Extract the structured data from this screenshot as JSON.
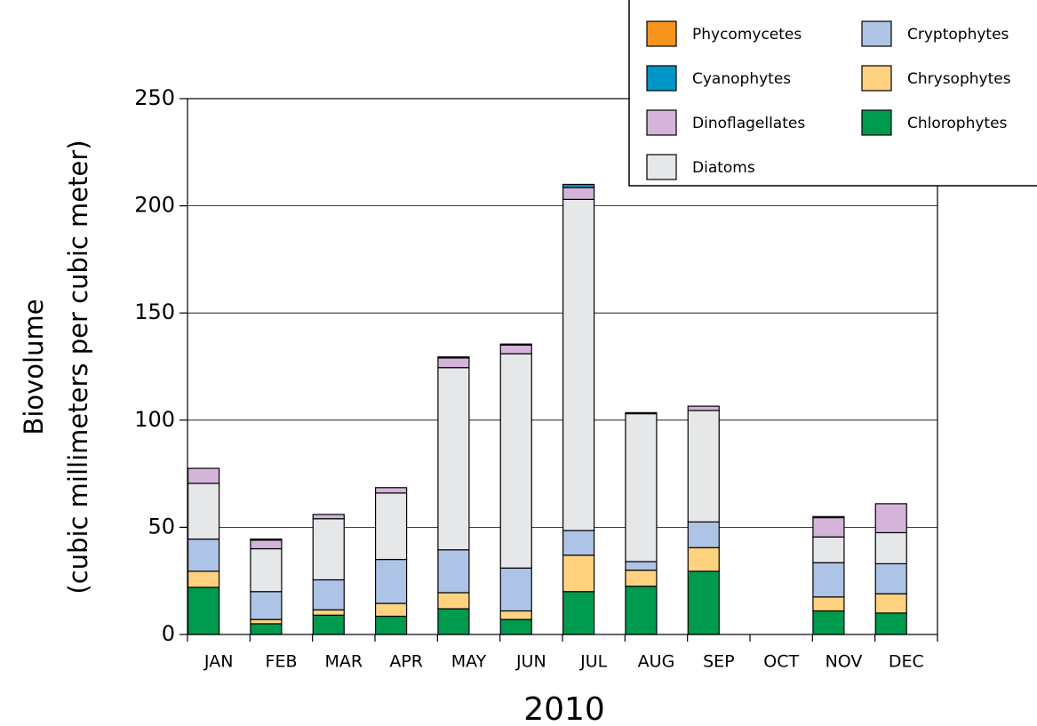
{
  "chart_data": {
    "type": "stacked_bar",
    "x_label": "2010",
    "y_label": [
      "Biovolume",
      "(cubic millimeters per cubic meter)"
    ],
    "categories": [
      "JAN",
      "FEB",
      "MAR",
      "APR",
      "MAY",
      "JUN",
      "JUL",
      "AUG",
      "SEP",
      "OCT",
      "NOV",
      "DEC"
    ],
    "series": [
      {
        "name": "Chlorophytes",
        "color": "#009a4e",
        "values": [
          22,
          5,
          9,
          8.5,
          12,
          7,
          20,
          22.5,
          29.5,
          null,
          11,
          10
        ]
      },
      {
        "name": "Chrysophytes",
        "color": "#ffd27f",
        "values": [
          7.5,
          2,
          2.5,
          6,
          7.5,
          4,
          17,
          7.5,
          11,
          null,
          6.5,
          9
        ]
      },
      {
        "name": "Cryptophytes",
        "color": "#aec4e6",
        "values": [
          15,
          13,
          14,
          20.5,
          20,
          20,
          11.5,
          4,
          12,
          null,
          16,
          14
        ]
      },
      {
        "name": "Diatoms",
        "color": "#e6e7e8",
        "values": [
          26,
          20,
          28.5,
          31,
          85,
          100,
          154.5,
          69,
          52,
          null,
          12,
          14.5
        ]
      },
      {
        "name": "Dinoflagellates",
        "color": "#d4b4d9",
        "values": [
          7,
          4,
          2,
          2.5,
          4.5,
          4,
          5.5,
          0.5,
          2,
          null,
          9,
          13.5
        ]
      },
      {
        "name": "Cyanophytes",
        "color": "#0096c8",
        "values": [
          0,
          0.5,
          0,
          0,
          0.5,
          0.5,
          1.5,
          0,
          0,
          null,
          0.5,
          0
        ]
      },
      {
        "name": "Phycomycetes",
        "color": "#f7941d",
        "values": [
          0,
          0,
          0,
          0,
          0,
          0,
          0,
          0,
          0,
          null,
          0,
          0
        ]
      }
    ],
    "ylim": [
      0,
      250
    ],
    "yticks": [
      0,
      50,
      100,
      150,
      200,
      250
    ],
    "grid": true,
    "legend": "top-right"
  }
}
